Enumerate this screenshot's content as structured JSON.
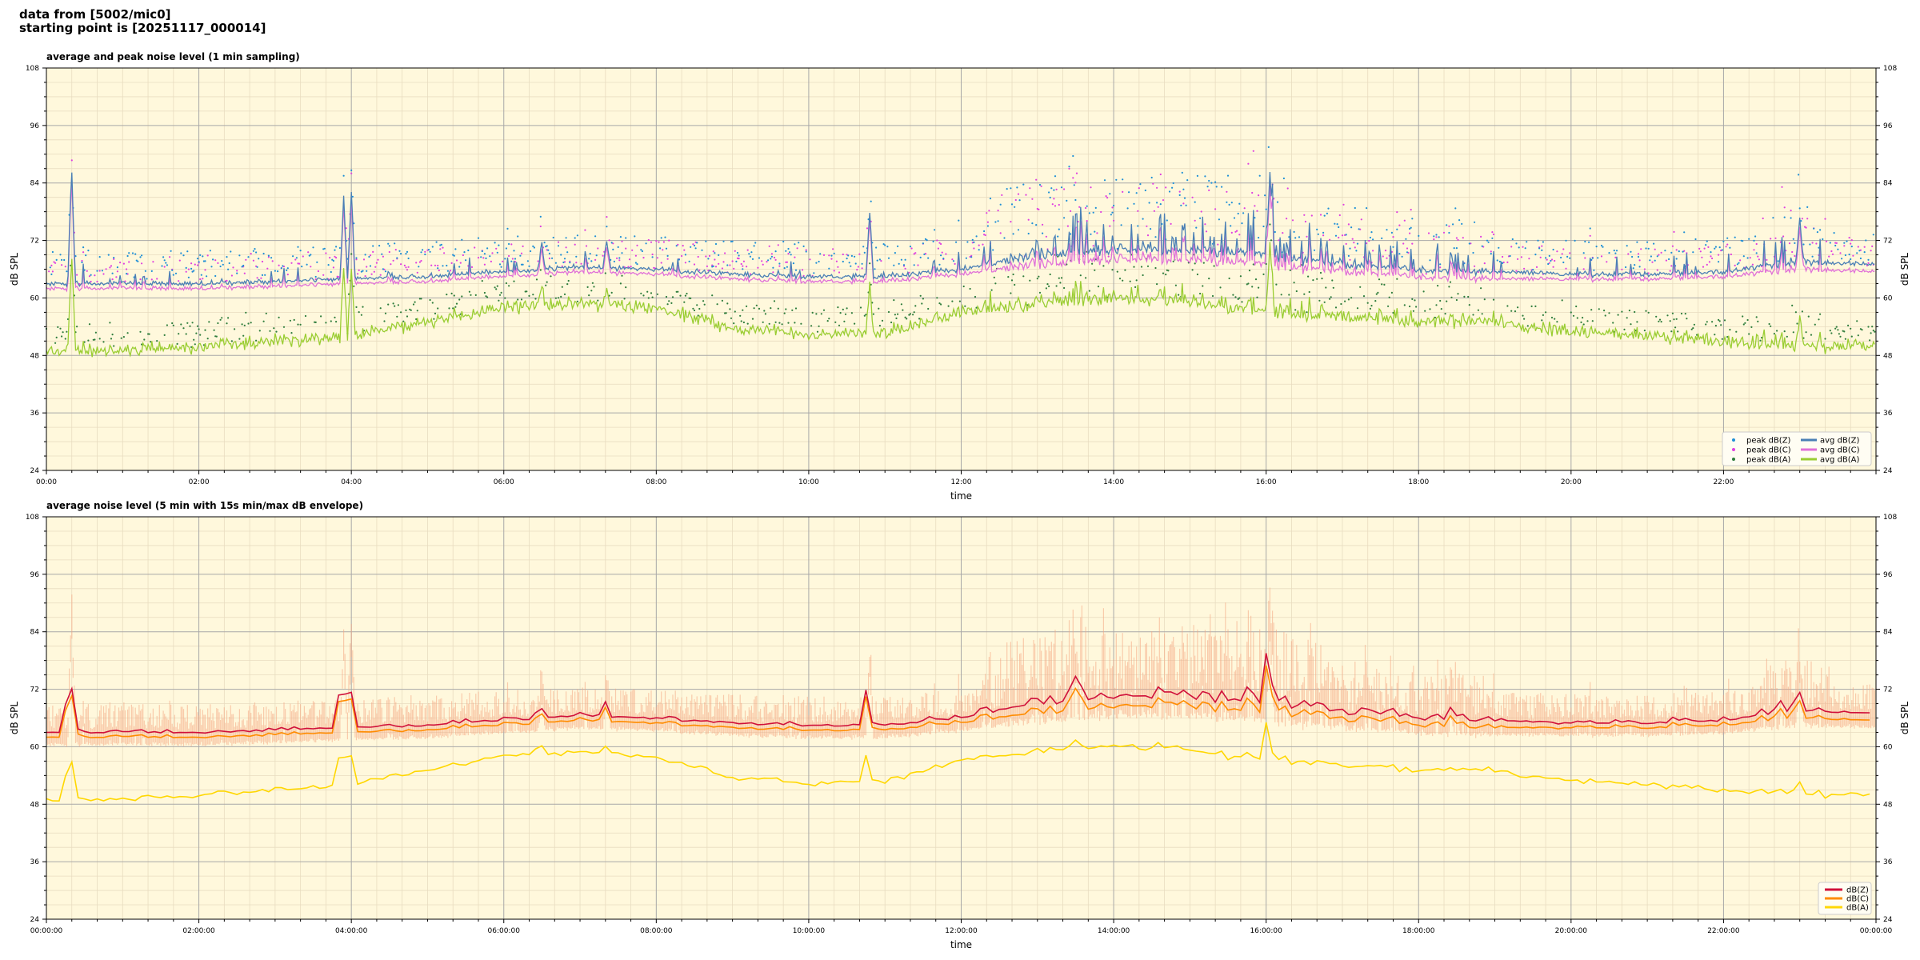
{
  "header": {
    "line1": "data from [5002/mic0]",
    "line2": "starting point is [20251117_000014]"
  },
  "chart_data": [
    {
      "type": "scatter+line",
      "title": "average and peak noise level (1 min sampling)",
      "xlabel": "time",
      "ylabel": "dB SPL",
      "ylim": [
        24,
        108
      ],
      "yticks": [
        "24",
        "36",
        "48",
        "60",
        "72",
        "84",
        "96",
        "108"
      ],
      "xlim_hours": [
        0,
        24
      ],
      "xticks": [
        "00:00",
        "02:00",
        "04:00",
        "06:00",
        "08:00",
        "10:00",
        "12:00",
        "14:00",
        "16:00",
        "18:00",
        "20:00",
        "22:00"
      ],
      "grid": true,
      "legend_position": "lower-right",
      "baseline_profiles": {
        "hours": [
          0,
          1,
          2,
          3,
          4,
          5,
          6,
          7,
          8,
          9,
          10,
          11,
          12,
          13,
          14,
          15,
          16,
          17,
          18,
          19,
          20,
          21,
          22,
          23,
          24
        ],
        "dBZ": [
          63,
          63,
          63,
          63.5,
          64,
          64.5,
          65.5,
          66.5,
          66,
          65,
          64.5,
          64.5,
          66,
          69,
          70,
          70,
          69,
          67,
          66,
          65.5,
          65,
          65,
          65.5,
          67.5,
          67
        ],
        "dBC": [
          62,
          62,
          62,
          62.5,
          63,
          63.5,
          64.5,
          65.5,
          65,
          64,
          63.5,
          63.5,
          65,
          67,
          68,
          68,
          67,
          65.5,
          64.5,
          64,
          64,
          64,
          64.5,
          66,
          65.5
        ],
        "dBA": [
          49,
          49,
          50,
          51,
          52,
          55,
          58,
          59,
          58,
          54,
          52,
          53,
          57,
          59,
          60,
          59,
          57,
          56,
          55,
          55,
          53,
          52,
          51,
          50,
          50
        ]
      },
      "spikes": [
        {
          "hour": 0.33,
          "dB": 88
        },
        {
          "hour": 3.9,
          "dB": 81
        },
        {
          "hour": 4.0,
          "dB": 82
        },
        {
          "hour": 6.5,
          "dB": 70
        },
        {
          "hour": 7.35,
          "dB": 72
        },
        {
          "hour": 10.8,
          "dB": 78
        },
        {
          "hour": 16.05,
          "dB": 87
        },
        {
          "hour": 23.0,
          "dB": 77
        }
      ],
      "series": [
        {
          "name": "peak dB(Z)",
          "kind": "points",
          "color": "#1f8fd6"
        },
        {
          "name": "peak dB(C)",
          "kind": "points",
          "color": "#e040e0"
        },
        {
          "name": "peak dB(A)",
          "kind": "points",
          "color": "#2f7d3c"
        },
        {
          "name": "avg dB(Z)",
          "kind": "line",
          "color": "#4a7fb5"
        },
        {
          "name": "avg dB(C)",
          "kind": "line",
          "color": "#e070d8"
        },
        {
          "name": "avg dB(A)",
          "kind": "line",
          "color": "#9acd32"
        }
      ]
    },
    {
      "type": "line",
      "title": "average noise level (5 min with 15s min/max dB envelope)",
      "xlabel": "time",
      "ylabel": "dB SPL",
      "ylim": [
        24,
        108
      ],
      "yticks": [
        "24",
        "36",
        "48",
        "60",
        "72",
        "84",
        "96",
        "108"
      ],
      "xlim_hours": [
        0,
        24
      ],
      "xticks": [
        "00:00:00",
        "02:00:00",
        "04:00:00",
        "06:00:00",
        "08:00:00",
        "10:00:00",
        "12:00:00",
        "14:00:00",
        "16:00:00",
        "18:00:00",
        "20:00:00",
        "22:00:00",
        "00:00:00"
      ],
      "grid": true,
      "legend_position": "lower-right",
      "series": [
        {
          "name": "dB(Z)",
          "kind": "line",
          "color": "#d0103a"
        },
        {
          "name": "dB(C)",
          "kind": "line",
          "color": "#ff8c00"
        },
        {
          "name": "dB(A)",
          "kind": "line",
          "color": "#ffd700"
        }
      ],
      "envelope_color": "#f4a582"
    }
  ],
  "colors": {
    "plot_bg": "#fff8dc",
    "grid_major": "#a8a8a8",
    "grid_minor": "#e8dcc0"
  }
}
